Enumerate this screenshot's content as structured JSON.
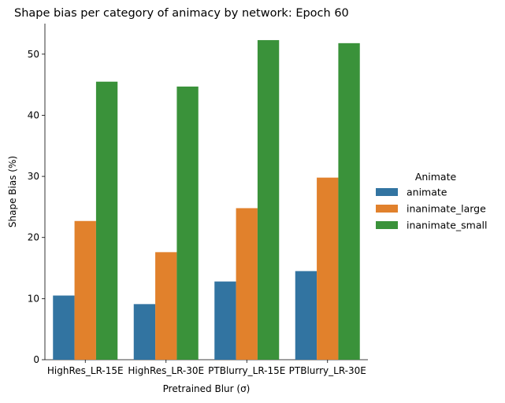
{
  "chart_data": {
    "type": "bar",
    "title": "Shape bias per category of animacy by network: Epoch 60",
    "xlabel": "Pretrained Blur (σ)",
    "ylabel": "Shape Bias (%)",
    "categories": [
      "HighRes_LR-15E",
      "HighRes_LR-30E",
      "PTBlurry_LR-15E",
      "PTBlurry_LR-30E"
    ],
    "series": [
      {
        "name": "animate",
        "color": "#3274a1",
        "values": [
          10.5,
          9.1,
          12.8,
          14.5
        ]
      },
      {
        "name": "inanimate_large",
        "color": "#e1812c",
        "values": [
          22.7,
          17.6,
          24.8,
          29.8
        ]
      },
      {
        "name": "inanimate_small",
        "color": "#3a923a",
        "values": [
          45.5,
          44.7,
          52.3,
          51.8
        ]
      }
    ],
    "ylim": [
      0,
      55
    ],
    "yticks": [
      0,
      10,
      20,
      30,
      40,
      50
    ],
    "legend": {
      "title": "Animate",
      "placement": "right"
    },
    "grid": false
  }
}
